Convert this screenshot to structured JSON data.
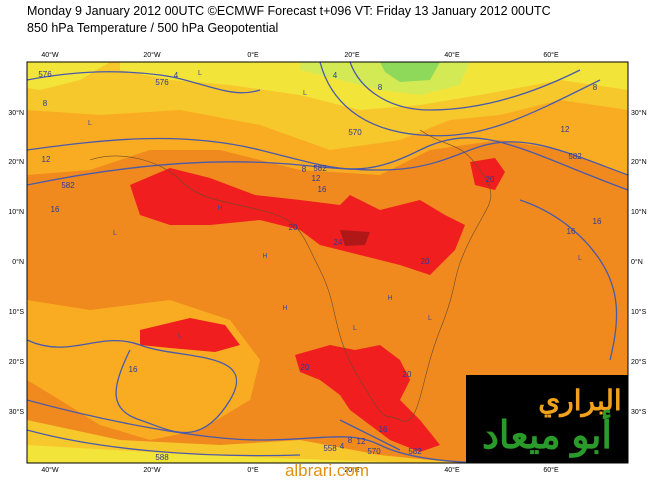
{
  "header": {
    "line1": "Monday 9 January 2012 00UTC ©ECMWF Forecast t+096 VT: Friday 13 January 2012 00UTC",
    "line2": "850 hPa Temperature / 500 hPa Geopotential"
  },
  "map": {
    "lon_labels": [
      "40°W",
      "20°W",
      "0°E",
      "20°E",
      "40°E",
      "60°E"
    ],
    "lat_labels": [
      "30°N",
      "20°N",
      "10°N",
      "0°N",
      "10°S",
      "20°S",
      "30°S"
    ],
    "contour_labels": [
      "576",
      "8",
      "12",
      "582",
      "16",
      "576",
      "4",
      "4",
      "8",
      "570",
      "8",
      "582",
      "12",
      "16",
      "20",
      "24",
      "20",
      "20",
      "8",
      "12",
      "582",
      "16",
      "16",
      "16",
      "20",
      "20",
      "16",
      "12",
      "8",
      "4",
      "558",
      "570",
      "582",
      "588"
    ],
    "centers": [
      "L",
      "L",
      "L",
      "H",
      "H",
      "L",
      "H",
      "L",
      "H",
      "L",
      "L",
      "H",
      "L"
    ]
  },
  "watermark": "albrari.com",
  "logo": {
    "line1": "البراري",
    "line2": "أبو ميعاد"
  }
}
